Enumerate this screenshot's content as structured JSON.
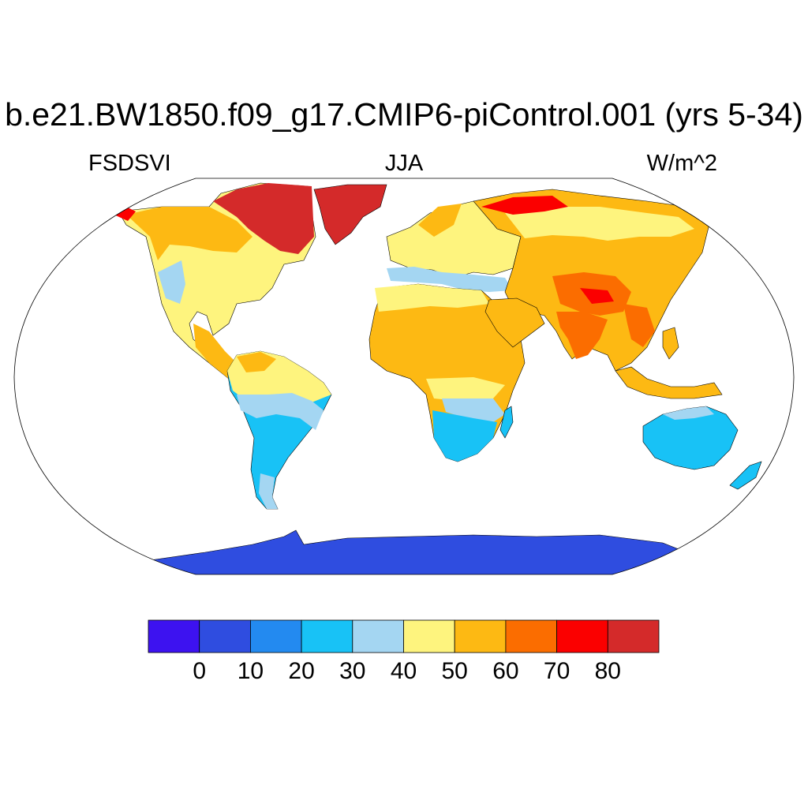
{
  "title": "b.e21.BW1850.f09_g17.CMIP6-piControl.001 (yrs 5-34)",
  "left_string": "FSDSVI",
  "center_string": "JJA",
  "right_string": "W/m^2",
  "colorbar": {
    "colors": [
      "#3d12f0",
      "#2f4de0",
      "#238af0",
      "#18c2f6",
      "#a4d6f2",
      "#fef47e",
      "#fdb913",
      "#fb6d00",
      "#fb0000",
      "#d42a2a"
    ],
    "labels": [
      "0",
      "10",
      "20",
      "30",
      "40",
      "50",
      "60",
      "70",
      "80"
    ]
  },
  "map": {
    "projection": "robinson",
    "ocean_color": "#ffffff",
    "colors": {
      "arctic_red": "#d42a2a",
      "bright_red": "#fb0000",
      "orange": "#fb6d00",
      "gold": "#fdb913",
      "yellow": "#fef47e",
      "light_blue": "#a4d6f2",
      "cyan": "#18c2f6",
      "blue": "#2f4de0"
    }
  }
}
